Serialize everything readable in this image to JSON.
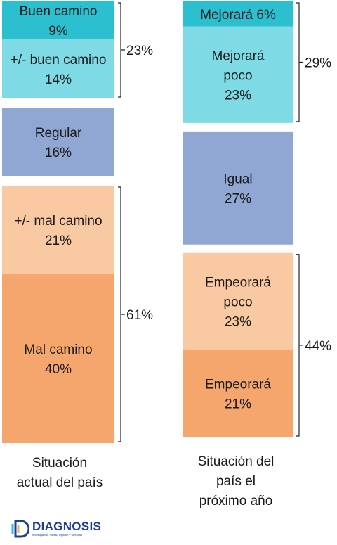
{
  "chart_data": {
    "type": "bar",
    "stacked": true,
    "orientation": "vertical",
    "colors": {
      "buen": "#2bbfcf",
      "buen_poco": "#7edbe6",
      "regular": "#8fa7d2",
      "mal_poco": "#f9c9a1",
      "mal": "#f5a66c"
    },
    "categories": [
      "Situación actual del país",
      "Situación del país el próximo año"
    ],
    "category_labels": [
      "Situación\nactual del país",
      "Situación del\npaís el\npróximo año"
    ],
    "bars": [
      {
        "segments": [
          {
            "label": "Buen camino\n9%",
            "value": 9,
            "color": "#2bbfcf"
          },
          {
            "label": "+/- buen camino\n14%",
            "value": 14,
            "color": "#7edbe6"
          },
          {
            "label": "Regular\n16%",
            "value": 16,
            "color": "#8fa7d2"
          },
          {
            "label": "+/- mal camino\n21%",
            "value": 21,
            "color": "#f9c9a1"
          },
          {
            "label": "Mal camino\n40%",
            "value": 40,
            "color": "#f5a66c"
          }
        ],
        "groups": [
          {
            "label": "23%",
            "value": 23,
            "from": 0,
            "to": 1
          },
          {
            "label": "61%",
            "value": 61,
            "from": 3,
            "to": 4
          }
        ]
      },
      {
        "segments": [
          {
            "label": "Mejorará 6%",
            "value": 6,
            "color": "#2bbfcf"
          },
          {
            "label": "Mejorará\npoco\n23%",
            "value": 23,
            "color": "#7edbe6"
          },
          {
            "label": "Igual\n27%",
            "value": 27,
            "color": "#8fa7d2"
          },
          {
            "label": "Empeorará\npoco\n23%",
            "value": 23,
            "color": "#f9c9a1"
          },
          {
            "label": "Empeorará\n21%",
            "value": 21,
            "color": "#f5a66c"
          }
        ],
        "groups": [
          {
            "label": "29%",
            "value": 29,
            "from": 0,
            "to": 1
          },
          {
            "label": "44%",
            "value": 44,
            "from": 3,
            "to": 4
          }
        ]
      }
    ]
  },
  "logo": {
    "name": "DIAGNOSIS",
    "tagline": "Investigación Social, Opinión y Mercado"
  }
}
